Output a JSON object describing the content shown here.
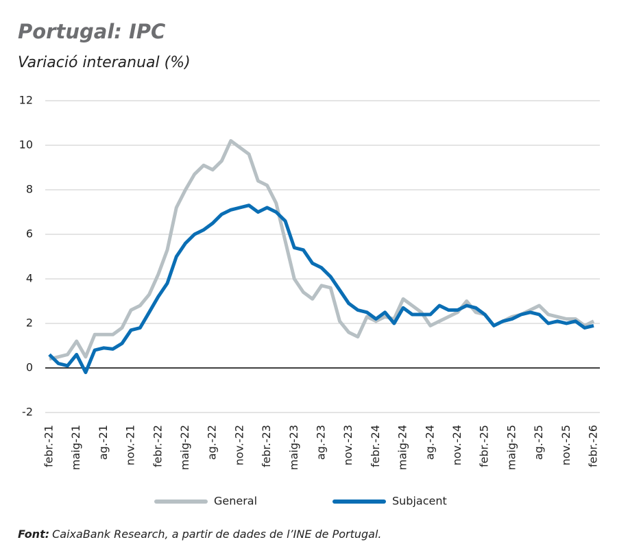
{
  "chart_data": {
    "type": "line",
    "title": "Portugal: IPC",
    "subtitle": "Variació interanual (%)",
    "source_label": "Font:",
    "source_text": "CaixaBank Research, a partir de dades de l’INE de Portugal.",
    "categories": [
      "febr.-21",
      null,
      null,
      "maig-21",
      null,
      null,
      "ag.-21",
      null,
      null,
      "nov.-21",
      null,
      null,
      "febr.-22",
      null,
      null,
      "maig-22",
      null,
      null,
      "ag.-22",
      null,
      null,
      "nov.-22",
      null,
      null,
      "febr.-23",
      null,
      null,
      "maig-23",
      null,
      null,
      "ag.-23",
      null,
      null,
      "nov.-23",
      null,
      null,
      "febr.-24",
      null,
      null,
      "maig-24",
      null,
      null,
      "ag.-24",
      null,
      null,
      "nov.-24",
      null,
      null,
      "febr.-25",
      null,
      null,
      "maig-25",
      null,
      null,
      "ag.-25",
      null,
      null,
      "nov.-25",
      null,
      null,
      "febr.-26"
    ],
    "series": [
      {
        "name": "General",
        "color": "#b7c0c4",
        "values": [
          0.4,
          0.5,
          0.6,
          1.2,
          0.5,
          1.5,
          1.5,
          1.5,
          1.8,
          2.6,
          2.8,
          3.3,
          4.2,
          5.3,
          7.2,
          8.0,
          8.7,
          9.1,
          8.9,
          9.3,
          10.2,
          9.9,
          9.6,
          8.4,
          8.2,
          7.4,
          5.7,
          4.0,
          3.4,
          3.1,
          3.7,
          3.6,
          2.1,
          1.6,
          1.4,
          2.3,
          2.1,
          2.3,
          2.2,
          3.1,
          2.8,
          2.5,
          1.9,
          2.1,
          2.3,
          2.5,
          3.0,
          2.5,
          2.4,
          1.9,
          2.1,
          2.3,
          2.4,
          2.6,
          2.8,
          2.4,
          2.3,
          2.2,
          2.2,
          1.9,
          2.1
        ]
      },
      {
        "name": "Subjacent",
        "color": "#0a6eb4",
        "values": [
          0.6,
          0.2,
          0.1,
          0.6,
          -0.2,
          0.8,
          0.9,
          0.85,
          1.1,
          1.7,
          1.8,
          2.5,
          3.2,
          3.8,
          5.0,
          5.6,
          6.0,
          6.2,
          6.5,
          6.9,
          7.1,
          7.2,
          7.3,
          7.0,
          7.2,
          7.0,
          6.6,
          5.4,
          5.3,
          4.7,
          4.5,
          4.1,
          3.5,
          2.9,
          2.6,
          2.5,
          2.2,
          2.5,
          2.0,
          2.7,
          2.4,
          2.4,
          2.4,
          2.8,
          2.6,
          2.6,
          2.8,
          2.7,
          2.4,
          1.9,
          2.1,
          2.2,
          2.4,
          2.5,
          2.4,
          2.0,
          2.1,
          2.0,
          2.1,
          1.8,
          1.9
        ]
      }
    ],
    "ylim": [
      -2,
      12
    ],
    "yticks": [
      -2,
      0,
      2,
      4,
      6,
      8,
      10,
      12
    ],
    "grid": true
  }
}
